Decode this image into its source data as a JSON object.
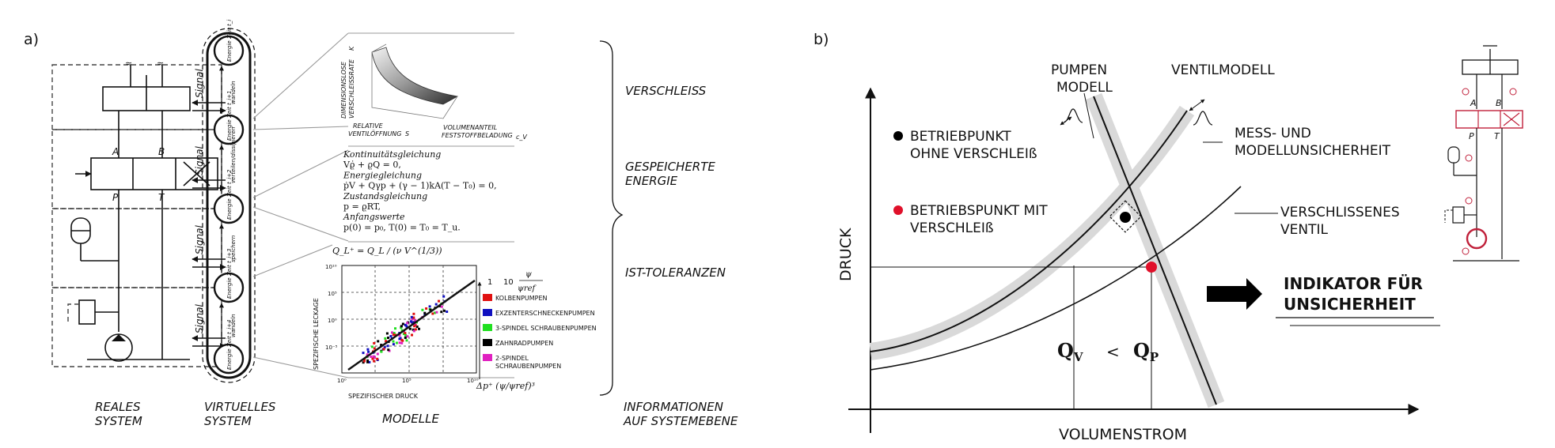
{
  "panel_a": {
    "label": "a)",
    "left_labels": {
      "signal": "Signal",
      "A": "A",
      "B": "B",
      "P": "P",
      "T": "T"
    },
    "virtual_nodes": [
      {
        "name": "Energie Zeit t_i"
      },
      {
        "name": "Energie Zeit t_i+1"
      },
      {
        "name": "Energie Zeit t_i+2"
      },
      {
        "name": "Energie Zeit t_i+3"
      },
      {
        "name": "Energie Zeit t_i+4"
      }
    ],
    "virtual_edges": [
      "wandeln",
      "verteilen/dissipieren",
      "speichern",
      "wandeln"
    ],
    "wear_plot": {
      "ylabel_1": "DIMENSIONSLOSE",
      "ylabel_2": "VERSCHLEISSRATE",
      "ylabel_sym": "K",
      "xlabel_1": "RELATIVE",
      "xlabel_2": "VENTILÖFFNUNG",
      "xlabel_sym": "S",
      "zlabel_1": "VOLUMENANTEIL",
      "zlabel_2": "FESTSTOFFBELADUNG",
      "zlabel_sym": "c_V"
    },
    "equations": [
      "Kontinuitätsgleichung",
      "Vϱ̇ + ϱQ = 0,",
      "Energiegleichung",
      "ṗV + Qγp + (γ − 1)kA(T − T₀) = 0,",
      "Zustandsgleichung",
      "p = ϱRT,",
      "Anfangswerte",
      "p(0) = p₀,     T(0) = T₀ = T_u."
    ],
    "leakage_plot": {
      "formula": "Q_L⁺ = Q_L / (ν V^(1/3))",
      "ylabel": "SPEZIFISCHE LECKAGE",
      "xlabel": "SPEZIFISCHER DRUCK",
      "xtick_1": "10⁰",
      "xtick_2": "10⁵",
      "xtick_3": "10¹⁰",
      "ytick_1": "10¹⁰",
      "ytick_2": "10⁵",
      "ytick_3": "10⁰",
      "ytick_4": "10⁻⁵",
      "legend_head_a": "1",
      "legend_head_b": "10",
      "legend_psi": "ψ",
      "legend_psiref": "ψref",
      "xaxis_formula": "Δp⁺ (ψ/ψref)³",
      "legend": [
        {
          "name": "KOLBENPUMPEN",
          "color": "#e01010"
        },
        {
          "name": "EXZENTERSCHNECKENPUMPEN",
          "color": "#1010c0"
        },
        {
          "name": "3-SPINDEL SCHRAUBENPUMPEN",
          "color": "#20e020"
        },
        {
          "name": "ZAHNRADPUMPEN",
          "color": "#000000"
        },
        {
          "name": "2-SPINDEL",
          "name2": "SCHRAUBENPUMPEN",
          "color": "#e020c0"
        }
      ]
    },
    "right_categories": [
      {
        "line1": "VERSCHLEISS",
        "line2": ""
      },
      {
        "line1": "GESPEICHERTE",
        "line2": "ENERGIE"
      },
      {
        "line1": "IST-TOLERANZEN",
        "line2": ""
      }
    ],
    "bottom_labels": {
      "reales_1": "REALES",
      "reales_2": "SYSTEM",
      "virtuelles_1": "VIRTUELLES",
      "virtuelles_2": "SYSTEM",
      "modelle": "MODELLE",
      "info_1": "INFORMATIONEN",
      "info_2": "AUF SYSTEMEBENE"
    }
  },
  "panel_b": {
    "label": "b)",
    "y_axis": "DRUCK",
    "x_axis": "VOLUMENSTROM",
    "pumpen_1": "PUMPEN",
    "pumpen_2": "MODELL",
    "ventilmodell": "VENTILMODELL",
    "mess_1": "MESS- UND",
    "mess_2": "MODELLUNSICHERHEIT",
    "legend_black_1": "BETRIEBPUNKT",
    "legend_black_2": "OHNE VERSCHLEIß",
    "legend_red_1": "BETRIEBSPUNKT MIT",
    "legend_red_2": "VERSCHLEIß",
    "worn_1": "VERSCHLISSENES",
    "worn_2": "VENTIL",
    "indicator_1": "INDIKATOR FÜR",
    "indicator_2": "UNSICHERHEIT",
    "qv": "Q",
    "qv_sub": "V",
    "lt": "<",
    "qp": "Q",
    "qp_sub": "P",
    "schematic": {
      "A": "A",
      "B": "B",
      "P": "P",
      "T": "T"
    },
    "colors": {
      "black_point": "#000000",
      "red_point": "#e0102a",
      "band": "#d9d9d9",
      "valve": "#c0203a"
    }
  }
}
